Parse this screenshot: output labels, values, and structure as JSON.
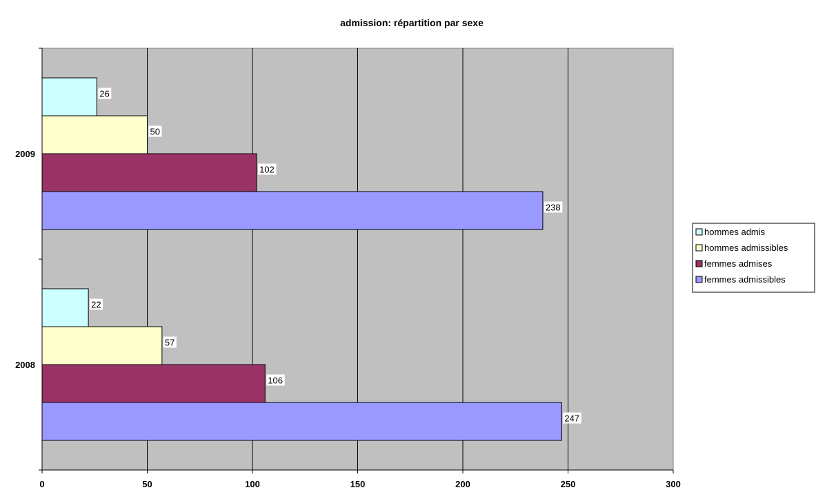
{
  "chart_data": {
    "type": "bar",
    "orientation": "horizontal",
    "title": "admission: répartition par sexe",
    "categories": [
      "2009",
      "2008"
    ],
    "series": [
      {
        "name": "hommes admis",
        "color": "#ccffff",
        "values": [
          26,
          22
        ]
      },
      {
        "name": "hommes admissibles",
        "color": "#ffffcc",
        "values": [
          50,
          57
        ]
      },
      {
        "name": "femmes admises",
        "color": "#993366",
        "values": [
          102,
          106
        ]
      },
      {
        "name": "femmes admissibles",
        "color": "#9999ff",
        "values": [
          238,
          247
        ]
      }
    ],
    "xlim": [
      0,
      300
    ],
    "xticks": [
      "0",
      "50",
      "100",
      "150",
      "200",
      "250",
      "300"
    ],
    "xlabel": "",
    "ylabel": "",
    "grid": true,
    "plot_background": "#c0c0c0",
    "legend_position": "right"
  }
}
